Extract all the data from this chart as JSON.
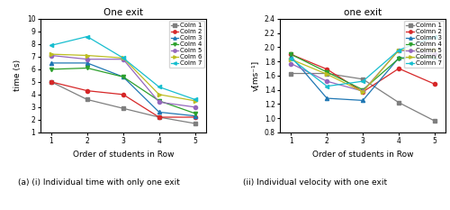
{
  "x": [
    1,
    2,
    3,
    4,
    5
  ],
  "time_title": "One exit",
  "vel_title": "one exit",
  "xlabel": "Order of students in Row",
  "ylabel_time": "time (s)",
  "ylabel_vel": "v[ms⁻¹]",
  "time_ylim": [
    1,
    10
  ],
  "vel_ylim": [
    0.8,
    2.4
  ],
  "time_yticks": [
    1,
    2,
    3,
    4,
    5,
    6,
    7,
    8,
    9,
    10
  ],
  "vel_yticks": [
    0.8,
    1.0,
    1.2,
    1.4,
    1.6,
    1.8,
    2.0,
    2.2,
    2.4
  ],
  "time_labels": [
    "Colm 1",
    "Colm 2",
    "Colm 3",
    "Colm 4",
    "Colm 5",
    "Colm 6",
    "Colm 7"
  ],
  "vel_labels": [
    "Colmn 1",
    "Colmn 2",
    "Colmn 3",
    "Colmn 4",
    "Colmn 5",
    "Colmn 6",
    "Colmn 7"
  ],
  "series_colors": [
    "#7f7f7f",
    "#d62728",
    "#1f77b4",
    "#2ca02c",
    "#9467bd",
    "#bcbd22",
    "#17becf"
  ],
  "series_markers": [
    "s",
    "o",
    "^",
    "v",
    "o",
    ">",
    "<"
  ],
  "time_data": [
    [
      5.0,
      3.6,
      2.9,
      2.2,
      1.7
    ],
    [
      5.0,
      4.3,
      4.0,
      2.2,
      2.2
    ],
    [
      6.5,
      6.5,
      5.4,
      2.6,
      2.3
    ],
    [
      6.0,
      6.1,
      5.4,
      3.5,
      2.5
    ],
    [
      7.1,
      6.8,
      6.8,
      3.4,
      3.0
    ],
    [
      7.2,
      7.1,
      6.9,
      4.0,
      3.5
    ],
    [
      7.9,
      8.6,
      6.9,
      4.6,
      3.6
    ]
  ],
  "vel_data": [
    [
      1.63,
      1.63,
      1.55,
      1.22,
      0.96
    ],
    [
      1.9,
      1.69,
      1.37,
      1.7,
      1.48
    ],
    [
      1.87,
      1.28,
      1.25,
      1.85,
      1.86
    ],
    [
      1.9,
      1.65,
      1.4,
      1.84,
      1.87
    ],
    [
      1.77,
      1.52,
      1.38,
      1.96,
      1.9
    ],
    [
      1.83,
      1.62,
      1.37,
      1.96,
      1.97
    ],
    [
      1.84,
      1.45,
      1.52,
      1.96,
      2.15
    ]
  ],
  "caption_left": "(a) (i) Individual time with only one exit",
  "caption_right": "(ii) Individual velocity with one exit",
  "figsize": [
    5.0,
    2.33
  ],
  "dpi": 100
}
